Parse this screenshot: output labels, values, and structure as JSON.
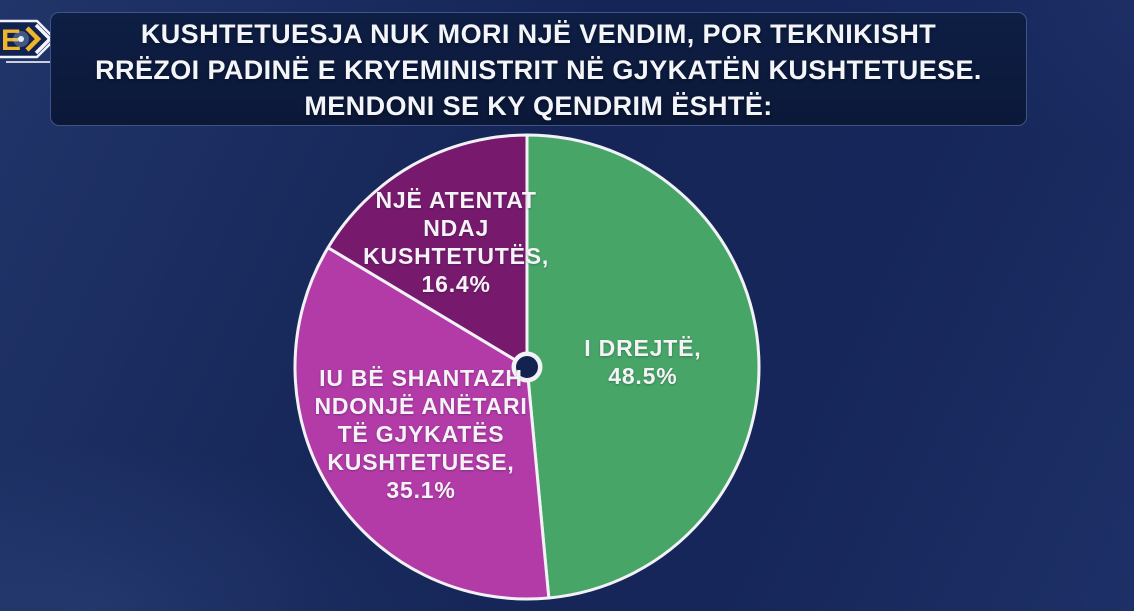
{
  "logo": {
    "letter": "E"
  },
  "header": {
    "title_lines": [
      "KUSHTETUESJA NUK MORI NJË VENDIM, POR TEKNIKISHT",
      "RRËZOI PADINË E KRYEMINISTRIT NË GJYKATËN KUSHTETUESE.",
      "MENDONI SE KY QENDRIM ËSHTË:"
    ]
  },
  "chart_data": {
    "type": "pie",
    "title": "KUSHTETUESJA NUK MORI NJË VENDIM, POR TEKNIKISHT RRËZOI PADINË E KRYEMINISTRIT NË GJYKATËN KUSHTETUESE. MENDONI SE KY QENDRIM ËSHTË:",
    "unit": "%",
    "start_angle_deg": 0,
    "direction": "clockwise",
    "legend_position": "none",
    "stroke_color": "#f2f2f6",
    "slices": [
      {
        "label": "I DREJTË",
        "value": 48.5,
        "color": "#46a567",
        "label_lines": [
          "I DREJTË,",
          "48.5%"
        ],
        "label_radius": 0.5
      },
      {
        "label": "IU BË SHANTAZH NDONJË ANËTARI TË GJYKATËS KUSHTETUESE",
        "value": 35.1,
        "color": "#b23ba8",
        "label_lines": [
          "IU BË SHANTAZH",
          "NDONJË ANËTARI",
          "TË GJYKATËS",
          "KUSHTETUESE,",
          "35.1%"
        ],
        "label_radius": 0.54
      },
      {
        "label": "NJË ATENTAT NDAJ KUSHTETUTËS",
        "value": 16.4,
        "color": "#771a6e",
        "label_lines": [
          "NJË ATENTAT",
          "NDAJ",
          "KUSHTETUTËS,",
          "16.4%"
        ],
        "label_radius": 0.62
      }
    ],
    "center_dot": {
      "ring_color": "#f2f2f6",
      "fill_color": "#13234f"
    }
  }
}
